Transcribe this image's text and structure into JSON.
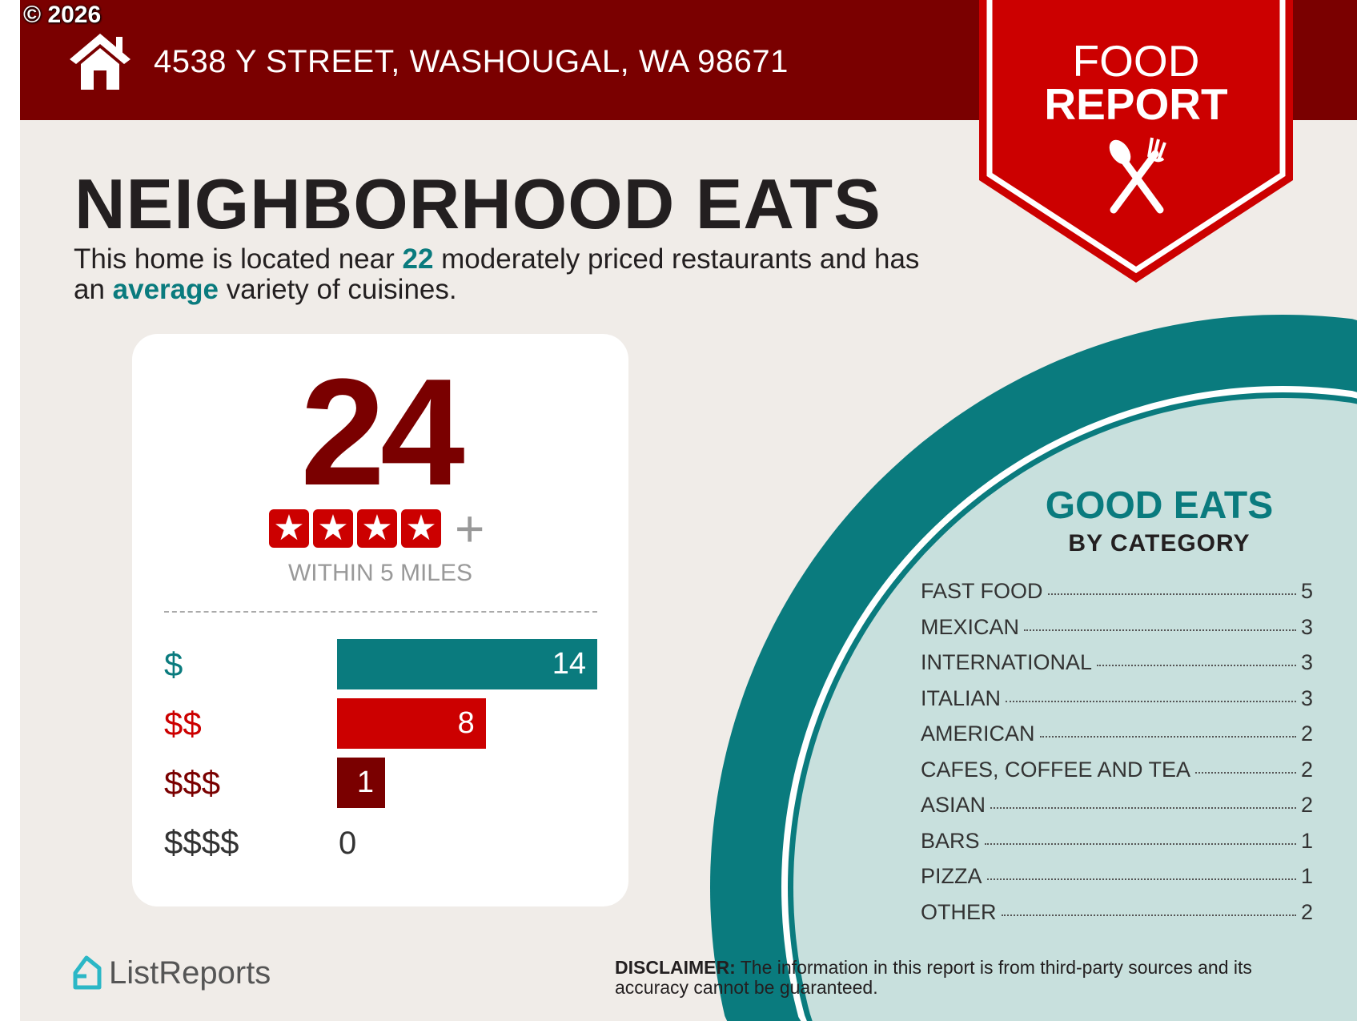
{
  "copyright": "© 2026",
  "header": {
    "address": "4538 Y STREET, WASHOUGAL, WA 98671",
    "icon": "house-icon"
  },
  "banner": {
    "line1": "FOOD",
    "line2": "REPORT",
    "icon": "spoon-fork-icon"
  },
  "title": "NEIGHBORHOOD EATS",
  "subtitle": {
    "p1": "This home is located near ",
    "count": "22",
    "p2": " moderately priced restaurants and has an ",
    "variety": "average",
    "p3": " variety of cuisines."
  },
  "card": {
    "total": "24",
    "rating_stars": 4,
    "rating_plus": "+",
    "within": "WITHIN 5 MILES",
    "price_levels": [
      {
        "label": "$",
        "value": 14,
        "color": "#0a7b7e"
      },
      {
        "label": "$$",
        "value": 8,
        "color": "#cc0000"
      },
      {
        "label": "$$$",
        "value": 1,
        "color": "#7a0000"
      },
      {
        "label": "$$$$",
        "value": 0,
        "color": "#333333"
      }
    ]
  },
  "categories": {
    "title": "GOOD EATS",
    "subtitle": "BY CATEGORY",
    "items": [
      {
        "name": "FAST FOOD",
        "count": "5"
      },
      {
        "name": "MEXICAN",
        "count": "3"
      },
      {
        "name": "INTERNATIONAL",
        "count": "3"
      },
      {
        "name": "ITALIAN",
        "count": "3"
      },
      {
        "name": "AMERICAN",
        "count": "2"
      },
      {
        "name": "CAFES, COFFEE AND TEA",
        "count": "2"
      },
      {
        "name": "ASIAN",
        "count": "2"
      },
      {
        "name": "BARS",
        "count": "1"
      },
      {
        "name": "PIZZA",
        "count": "1"
      },
      {
        "name": "OTHER",
        "count": "2"
      }
    ]
  },
  "footer": {
    "logo": "ListReports",
    "disclaimer_label": "DISCLAIMER:",
    "disclaimer_text": " The information in this report is from third-party sources and its accuracy cannot be guaranteed."
  },
  "colors": {
    "header": "#7a0000",
    "banner": "#cc0000",
    "teal": "#0a7b7e",
    "circle_fill": "#c8e0dd",
    "background": "#f0ece8"
  }
}
